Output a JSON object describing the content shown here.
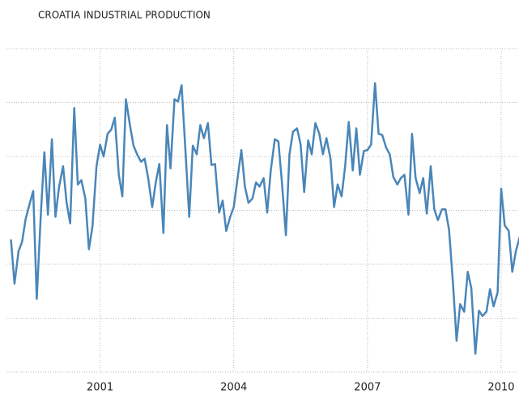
{
  "chart_data": {
    "type": "line",
    "title": "CROATIA INDUSTRIAL PRODUCTION",
    "x": [
      1999.0,
      1999.08,
      1999.17,
      1999.25,
      1999.33,
      1999.42,
      1999.5,
      1999.58,
      1999.67,
      1999.75,
      1999.83,
      1999.92,
      2000.0,
      2000.08,
      2000.17,
      2000.25,
      2000.33,
      2000.42,
      2000.5,
      2000.58,
      2000.67,
      2000.75,
      2000.83,
      2000.92,
      2001.0,
      2001.08,
      2001.17,
      2001.25,
      2001.33,
      2001.42,
      2001.5,
      2001.58,
      2001.67,
      2001.75,
      2001.83,
      2001.92,
      2002.0,
      2002.08,
      2002.17,
      2002.25,
      2002.33,
      2002.42,
      2002.5,
      2002.58,
      2002.67,
      2002.75,
      2002.83,
      2002.92,
      2003.0,
      2003.08,
      2003.17,
      2003.25,
      2003.33,
      2003.42,
      2003.5,
      2003.58,
      2003.67,
      2003.75,
      2003.83,
      2003.92,
      2004.0,
      2004.08,
      2004.17,
      2004.25,
      2004.33,
      2004.42,
      2004.5,
      2004.58,
      2004.67,
      2004.75,
      2004.83,
      2004.92,
      2005.0,
      2005.08,
      2005.17,
      2005.25,
      2005.33,
      2005.42,
      2005.5,
      2005.58,
      2005.67,
      2005.75,
      2005.83,
      2005.92,
      2006.0,
      2006.08,
      2006.17,
      2006.25,
      2006.33,
      2006.42,
      2006.5,
      2006.58,
      2006.67,
      2006.75,
      2006.83,
      2006.92,
      2007.0,
      2007.08,
      2007.17,
      2007.25,
      2007.33,
      2007.42,
      2007.5,
      2007.58,
      2007.67,
      2007.75,
      2007.83,
      2007.92,
      2008.0,
      2008.08,
      2008.17,
      2008.25,
      2008.33,
      2008.42,
      2008.5,
      2008.58,
      2008.67,
      2008.75,
      2008.83,
      2008.92,
      2009.0,
      2009.08,
      2009.17,
      2009.25,
      2009.33,
      2009.42,
      2009.5,
      2009.58,
      2009.67,
      2009.75,
      2009.83,
      2009.92,
      2010.0,
      2010.08,
      2010.17,
      2010.25,
      2010.33,
      2010.42
    ],
    "values": [
      -2.7,
      -6.8,
      -3.8,
      -2.9,
      -0.8,
      0.6,
      1.8,
      -8.2,
      -0.4,
      5.4,
      -0.4,
      6.6,
      -0.6,
      2.2,
      4.1,
      0.7,
      -1.2,
      9.5,
      2.4,
      2.8,
      1.1,
      -3.6,
      -1.5,
      4.1,
      6.1,
      5.0,
      7.1,
      7.5,
      8.6,
      3.3,
      1.3,
      10.3,
      7.9,
      6.0,
      5.2,
      4.5,
      4.8,
      3.0,
      0.3,
      2.6,
      4.3,
      -2.1,
      7.9,
      3.9,
      10.3,
      10.1,
      11.6,
      5.2,
      -0.6,
      6.0,
      5.2,
      7.9,
      6.7,
      8.1,
      4.2,
      4.3,
      -0.2,
      0.9,
      -1.9,
      -0.6,
      0.3,
      2.8,
      5.6,
      2.2,
      0.7,
      1.1,
      2.6,
      2.2,
      3.0,
      -0.2,
      3.7,
      6.6,
      6.4,
      2.6,
      -2.3,
      5.2,
      7.3,
      7.6,
      6.1,
      1.7,
      6.5,
      5.2,
      8.1,
      7.1,
      5.2,
      6.7,
      4.8,
      0.3,
      2.4,
      1.3,
      4.1,
      8.2,
      3.7,
      7.6,
      3.3,
      5.5,
      5.6,
      6.1,
      11.8,
      7.1,
      7.0,
      5.8,
      5.2,
      3.1,
      2.4,
      3.0,
      3.3,
      -0.4,
      7.1,
      3.0,
      1.6,
      3.0,
      -0.3,
      4.1,
      0.1,
      -0.9,
      0.1,
      0.1,
      -1.8,
      -6.8,
      -12.1,
      -8.7,
      -9.4,
      -5.7,
      -7.2,
      -13.3,
      -9.3,
      -9.8,
      -9.4,
      -7.3,
      -8.9,
      -7.6,
      2.0,
      -1.4,
      -1.9,
      -5.7,
      -3.8,
      -2.4
    ],
    "color": "#4a86b8",
    "xlim": [
      1998.9,
      2010.4
    ],
    "xticks": [
      2001,
      2004,
      2007,
      2010
    ],
    "ylim": [
      -15,
      15
    ],
    "yticks": [
      -15,
      -10,
      -5,
      0,
      5,
      10,
      15
    ],
    "grid": true
  }
}
